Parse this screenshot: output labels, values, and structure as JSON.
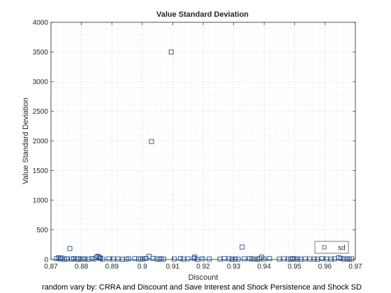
{
  "chart_data": {
    "type": "scatter",
    "title": "Value Standard Deviation",
    "xlabel": "Discount",
    "ylabel": "Value Standard Deviation",
    "xlim": [
      0.87,
      0.97
    ],
    "ylim": [
      0,
      4000
    ],
    "xticks": [
      "0.87",
      "0.88",
      "0.89",
      "0.9",
      "0.91",
      "0.92",
      "0.93",
      "0.94",
      "0.95",
      "0.96",
      "0.97"
    ],
    "yticks": [
      "0",
      "500",
      "1000",
      "1500",
      "2000",
      "2500",
      "3000",
      "3500",
      "4000"
    ],
    "grid": true,
    "minor_grid": true,
    "legend_position": "bottom-right",
    "marker": "square",
    "color": "#1f4e8c",
    "series": [
      {
        "name": "sd",
        "points": [
          [
            0.8718,
            15
          ],
          [
            0.8725,
            30
          ],
          [
            0.873,
            10
          ],
          [
            0.8735,
            25
          ],
          [
            0.8745,
            5
          ],
          [
            0.8752,
            12
          ],
          [
            0.8762,
            185
          ],
          [
            0.8768,
            8
          ],
          [
            0.8775,
            15
          ],
          [
            0.8785,
            10
          ],
          [
            0.879,
            5
          ],
          [
            0.8798,
            12
          ],
          [
            0.8805,
            8
          ],
          [
            0.8812,
            10
          ],
          [
            0.8822,
            5
          ],
          [
            0.8835,
            15
          ],
          [
            0.8842,
            10
          ],
          [
            0.885,
            40
          ],
          [
            0.8855,
            55
          ],
          [
            0.886,
            30
          ],
          [
            0.8862,
            20
          ],
          [
            0.887,
            8
          ],
          [
            0.889,
            12
          ],
          [
            0.8905,
            10
          ],
          [
            0.892,
            10
          ],
          [
            0.8935,
            5
          ],
          [
            0.8948,
            8
          ],
          [
            0.8955,
            12
          ],
          [
            0.8975,
            15
          ],
          [
            0.8988,
            10
          ],
          [
            0.8995,
            8
          ],
          [
            0.9002,
            12
          ],
          [
            0.9012,
            18
          ],
          [
            0.9022,
            55
          ],
          [
            0.903,
            1990
          ],
          [
            0.9035,
            20
          ],
          [
            0.9048,
            10
          ],
          [
            0.9055,
            5
          ],
          [
            0.9062,
            12
          ],
          [
            0.907,
            8
          ],
          [
            0.9095,
            3500
          ],
          [
            0.9105,
            10
          ],
          [
            0.9125,
            15
          ],
          [
            0.9135,
            8
          ],
          [
            0.915,
            12
          ],
          [
            0.917,
            20
          ],
          [
            0.9172,
            40
          ],
          [
            0.918,
            5
          ],
          [
            0.9198,
            12
          ],
          [
            0.922,
            10
          ],
          [
            0.9255,
            8
          ],
          [
            0.927,
            15
          ],
          [
            0.9285,
            12
          ],
          [
            0.9295,
            5
          ],
          [
            0.9305,
            10
          ],
          [
            0.9315,
            8
          ],
          [
            0.9328,
            210
          ],
          [
            0.9335,
            12
          ],
          [
            0.9352,
            15
          ],
          [
            0.936,
            10
          ],
          [
            0.9368,
            8
          ],
          [
            0.9378,
            5
          ],
          [
            0.9385,
            12
          ],
          [
            0.9392,
            40
          ],
          [
            0.94,
            10
          ],
          [
            0.9418,
            15
          ],
          [
            0.945,
            8
          ],
          [
            0.9465,
            12
          ],
          [
            0.948,
            10
          ],
          [
            0.9488,
            5
          ],
          [
            0.9495,
            15
          ],
          [
            0.9502,
            8
          ],
          [
            0.951,
            10
          ],
          [
            0.952,
            5
          ],
          [
            0.9535,
            12
          ],
          [
            0.955,
            8
          ],
          [
            0.9565,
            10
          ],
          [
            0.9575,
            5
          ],
          [
            0.959,
            15
          ],
          [
            0.9605,
            10
          ],
          [
            0.962,
            8
          ],
          [
            0.9632,
            12
          ],
          [
            0.9645,
            30
          ],
          [
            0.9652,
            20
          ],
          [
            0.9662,
            8
          ],
          [
            0.9672,
            12
          ],
          [
            0.968,
            5
          ],
          [
            0.9688,
            10
          ]
        ]
      }
    ],
    "footnote": "random vary by: CRRA and Discount and Save Interest and Shock Persistence and Shock SD"
  }
}
